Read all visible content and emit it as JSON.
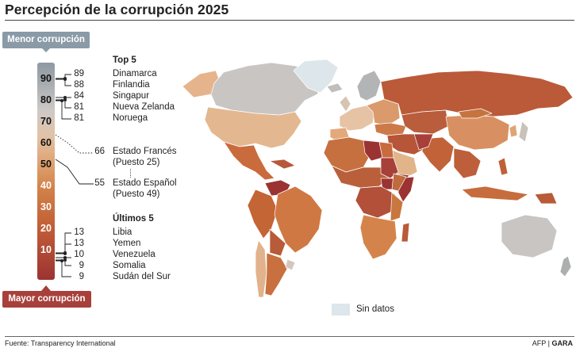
{
  "title": "Percepción de la corrupción 2025",
  "scale": {
    "top_label": "Menor corrupción",
    "bottom_label": "Mayor corrupción",
    "ticks": [
      "90",
      "80",
      "70",
      "60",
      "50",
      "40",
      "30",
      "20",
      "10"
    ]
  },
  "top5": {
    "heading": "Top 5",
    "items": [
      {
        "score": "89",
        "country": "Dinamarca"
      },
      {
        "score": "88",
        "country": "Finlandia"
      },
      {
        "score": "84",
        "country": "Singapur"
      },
      {
        "score": "81",
        "country": "Nueva Zelanda"
      },
      {
        "score": "81",
        "country": "Noruega"
      }
    ]
  },
  "france": {
    "score": "66",
    "name": "Estado Francés",
    "rank": "(Puesto 25)"
  },
  "spain": {
    "score": "55",
    "name": "Estado Español",
    "rank": "(Puesto 49)"
  },
  "last5": {
    "heading": "Últimos 5",
    "items": [
      {
        "score": "13",
        "country": "Libia"
      },
      {
        "score": "13",
        "country": "Yemen"
      },
      {
        "score": "10",
        "country": "Venezuela"
      },
      {
        "score": "9",
        "country": "Somalia"
      },
      {
        "score": "9",
        "country": "Sudán del Sur"
      }
    ]
  },
  "legend": {
    "no_data": "Sin datos",
    "no_data_color": "#dde6ea"
  },
  "source": "Fuente: Transparency International",
  "credit": {
    "agency": "AFP |",
    "outlet": "GARA"
  },
  "colors": {
    "top_pill": "#8a9aa6",
    "bottom_pill": "#a7403b",
    "low_corruption": "#b8b8b8",
    "high_corruption": "#9b3332"
  }
}
